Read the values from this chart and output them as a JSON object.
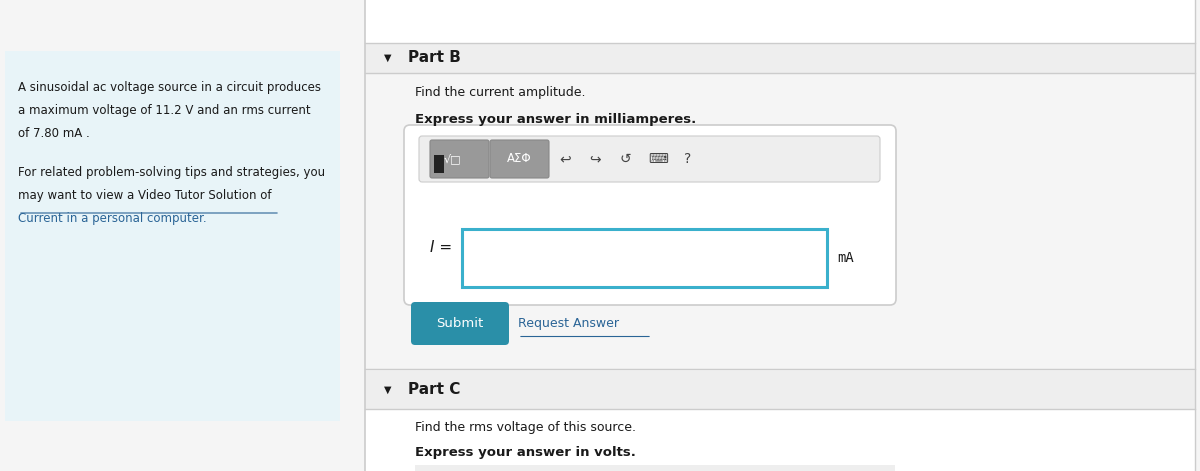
{
  "bg_color": "#f5f5f5",
  "left_panel_bg": "#e8f4f8",
  "part_b_label": "Part B",
  "part_b_text1": "Find the current amplitude.",
  "part_b_text2": "Express your answer in milliamperes.",
  "input_label": "I =",
  "input_unit": "mA",
  "submit_text": "Submit",
  "submit_bg": "#2a8fa8",
  "submit_fg": "#ffffff",
  "request_text": "Request Answer",
  "request_color": "#2a6496",
  "part_c_label": "Part C",
  "part_c_text1": "Find the rms voltage of this source.",
  "part_c_text2": "Express your answer in volts.",
  "input_border_color": "#3ab0cc",
  "panel_border_color": "#cccccc",
  "divider_color": "#cccccc",
  "white": "#ffffff",
  "dark_text": "#1a1a1a",
  "light_gray_bg": "#eeeeee",
  "btn_gray": "#b0b0b0",
  "btn_border": "#aaaaaa"
}
